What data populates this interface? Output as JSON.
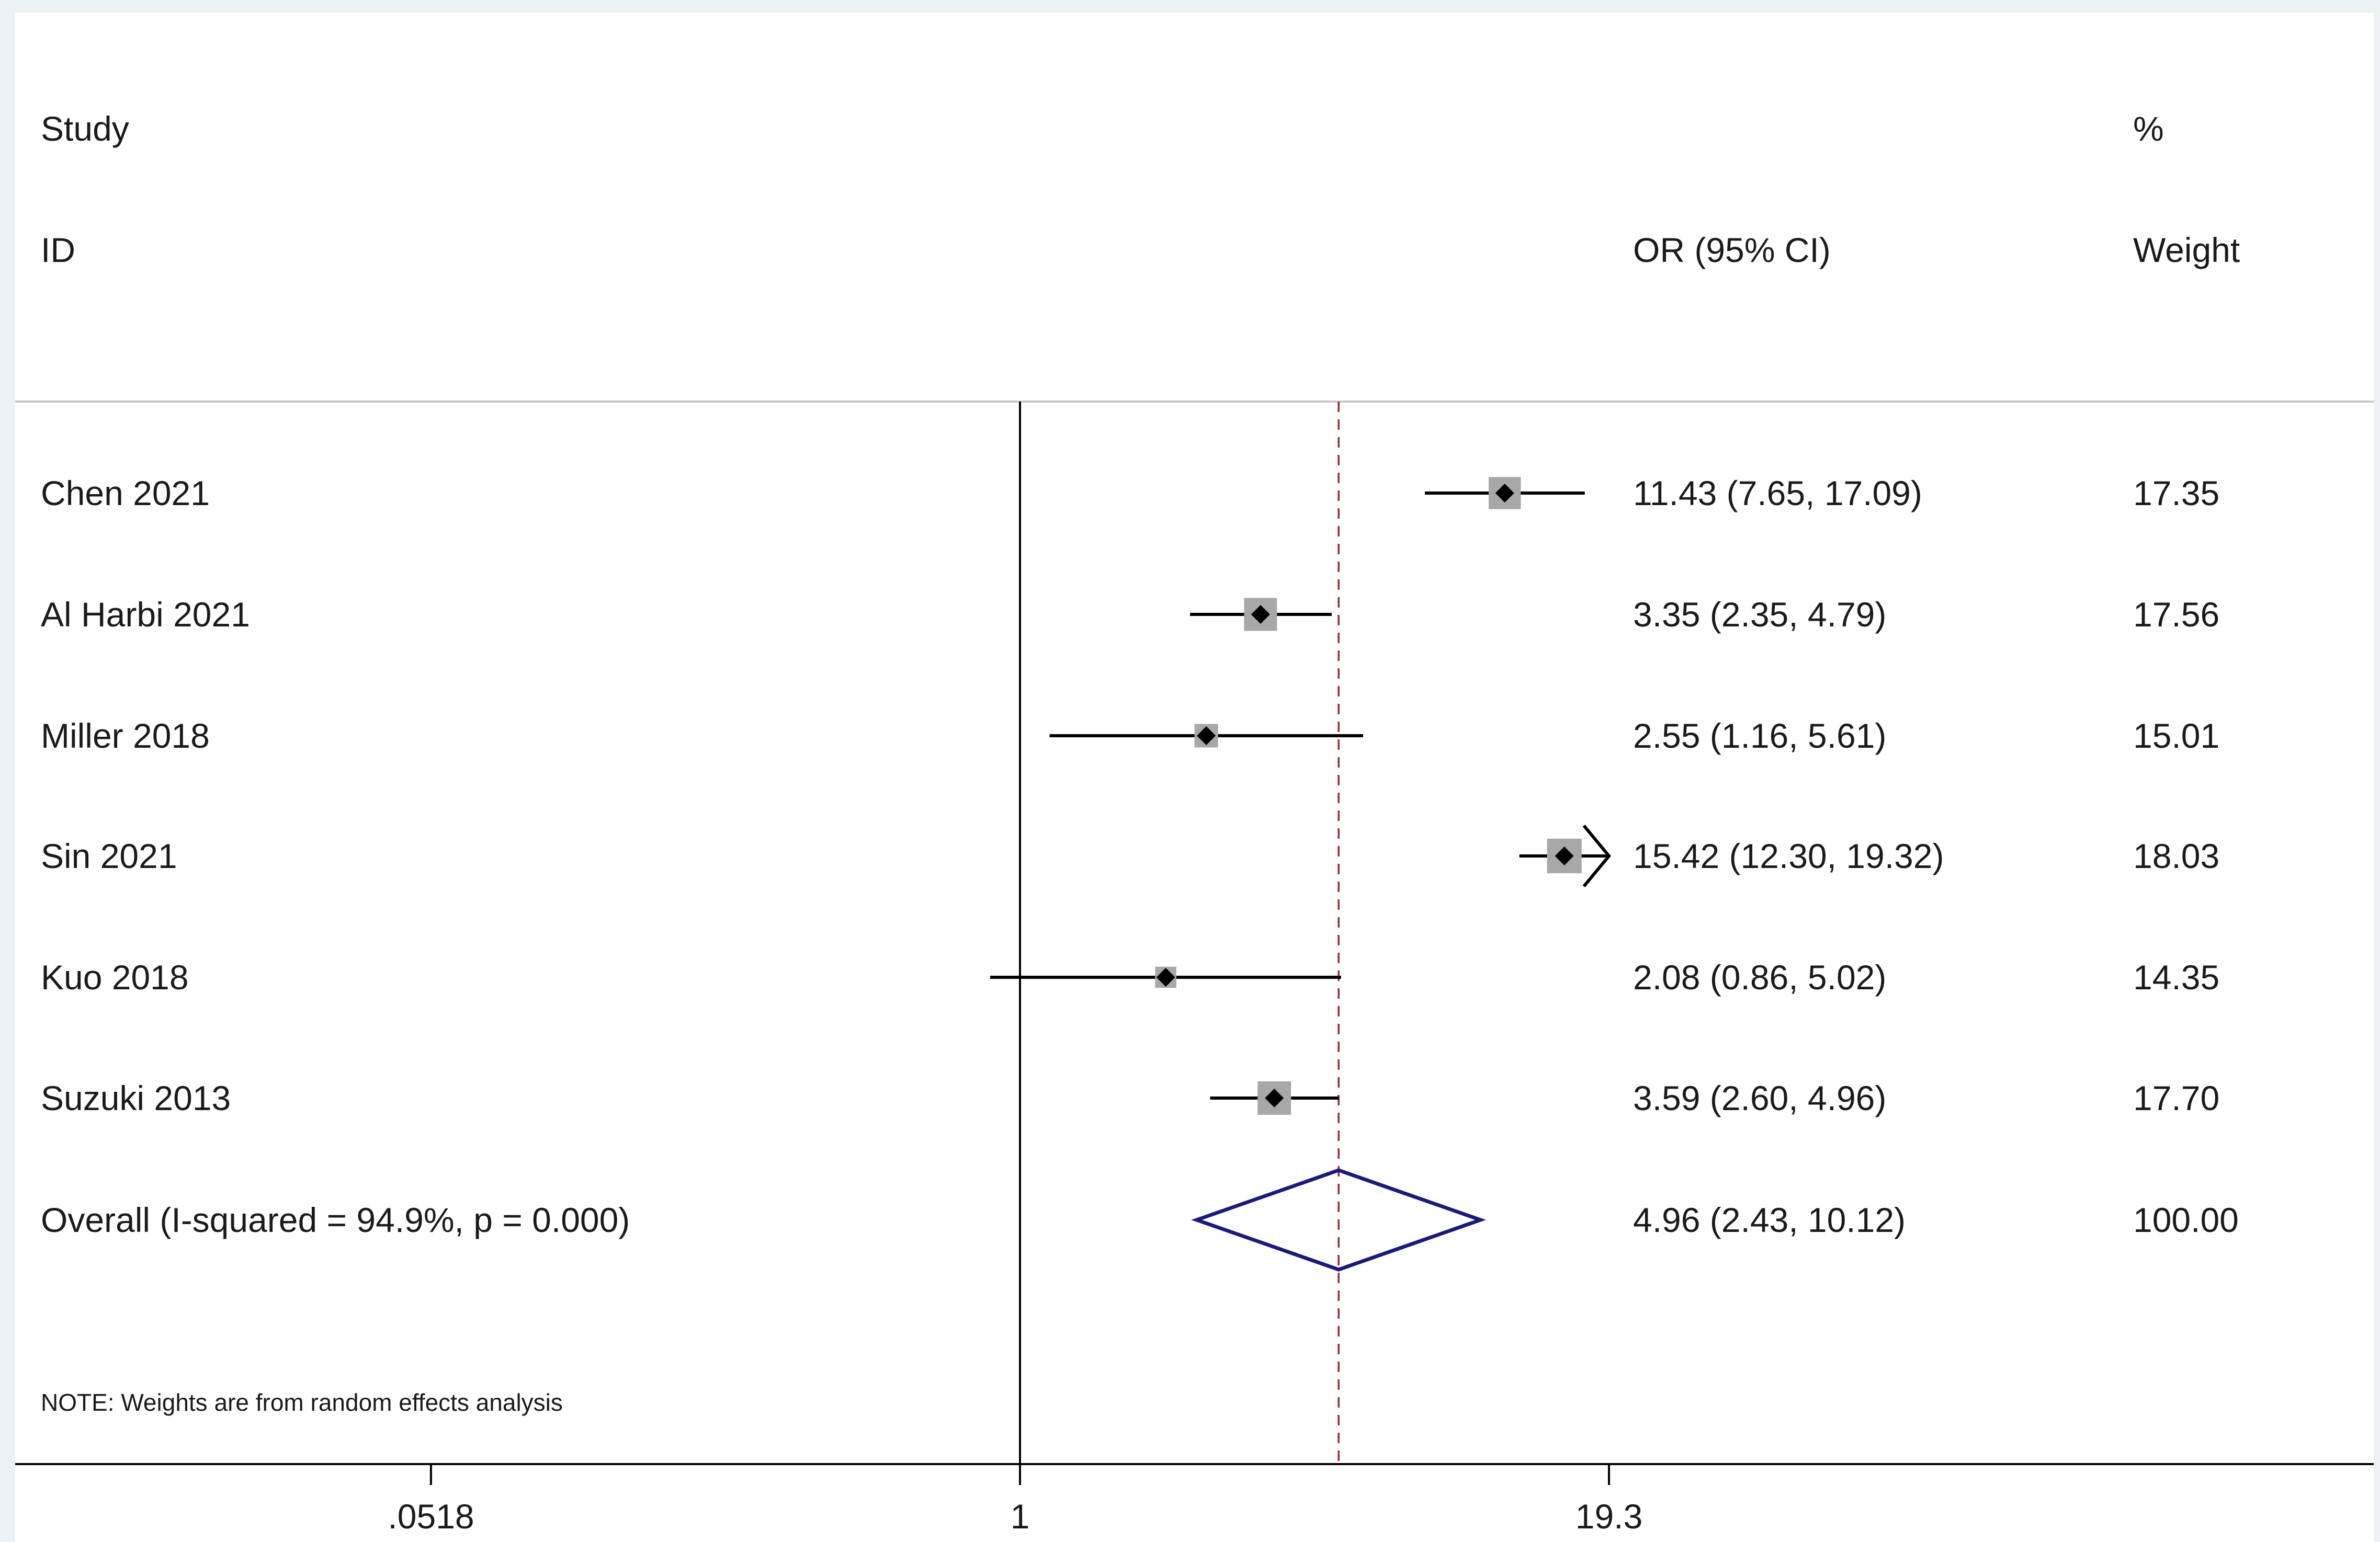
{
  "chart_data": {
    "type": "forest",
    "headers": {
      "study_line1": "Study",
      "study_line2": "ID",
      "or_header": "OR (95% CI)",
      "weight_line1": "%",
      "weight_line2": "Weight"
    },
    "studies": [
      {
        "id": "Chen 2021",
        "or": 11.43,
        "lo": 7.65,
        "hi": 17.09,
        "ci_text": "11.43 (7.65, 17.09)",
        "weight_text": "17.35",
        "weight": 17.35
      },
      {
        "id": "Al Harbi 2021",
        "or": 3.35,
        "lo": 2.35,
        "hi": 4.79,
        "ci_text": "3.35 (2.35, 4.79)",
        "weight_text": "17.56",
        "weight": 17.56
      },
      {
        "id": "Miller 2018",
        "or": 2.55,
        "lo": 1.16,
        "hi": 5.61,
        "ci_text": "2.55 (1.16, 5.61)",
        "weight_text": "15.01",
        "weight": 15.01
      },
      {
        "id": "Sin 2021",
        "or": 15.42,
        "lo": 12.3,
        "hi": 19.32,
        "ci_text": "15.42 (12.30, 19.32)",
        "weight_text": "18.03",
        "weight": 18.03,
        "ci_truncated_right": true
      },
      {
        "id": "Kuo 2018",
        "or": 2.08,
        "lo": 0.86,
        "hi": 5.02,
        "ci_text": "2.08 (0.86, 5.02)",
        "weight_text": "14.35",
        "weight": 14.35
      },
      {
        "id": "Suzuki 2013",
        "or": 3.59,
        "lo": 2.6,
        "hi": 4.96,
        "ci_text": "3.59 (2.60, 4.96)",
        "weight_text": "17.70",
        "weight": 17.7
      }
    ],
    "overall": {
      "label": "Overall  (I-squared = 94.9%, p = 0.000)",
      "or": 4.96,
      "lo": 2.43,
      "hi": 10.12,
      "ci_text": "4.96 (2.43, 10.12)",
      "weight_text": "100.00"
    },
    "note": "NOTE: Weights are from random effects analysis",
    "x_axis": {
      "scale": "log",
      "range": [
        0.0518,
        19.3
      ],
      "ticks": [
        0.0518,
        1,
        19.3
      ],
      "tick_labels": [
        ".0518",
        "1",
        "19.3"
      ],
      "null_line": 1
    },
    "colors": {
      "ci_line": "#000000",
      "point": "#000000",
      "weight_box": "#a8a8a8",
      "diamond": "#1a1a7a",
      "overall_line": "#9b2a2a",
      "axis": "#000000",
      "divider": "#c8c8c8"
    }
  }
}
